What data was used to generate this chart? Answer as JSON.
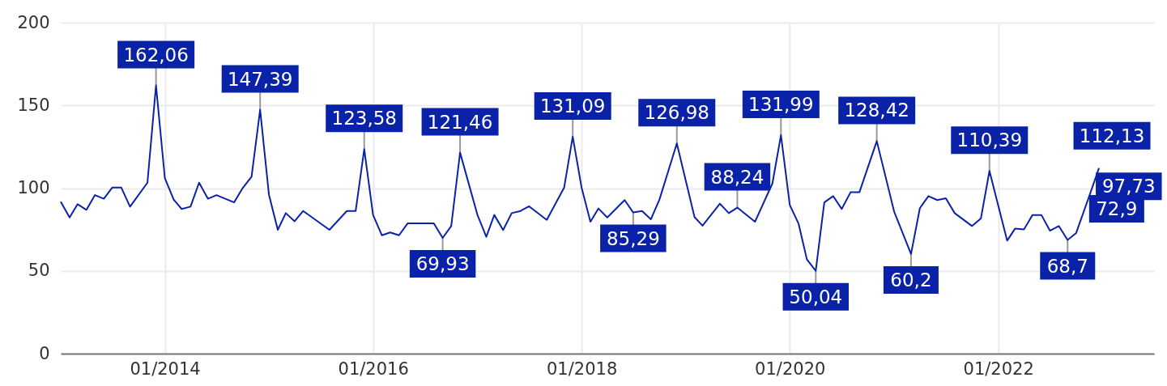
{
  "chart_data": {
    "type": "line",
    "x": [
      "2013-01",
      "2013-02",
      "2013-03",
      "2013-04",
      "2013-05",
      "2013-06",
      "2013-07",
      "2013-08",
      "2013-09",
      "2013-11",
      "2013-12",
      "2014-01",
      "2014-02",
      "2014-03",
      "2014-04",
      "2014-05",
      "2014-06",
      "2014-07",
      "2014-09",
      "2014-10",
      "2014-11",
      "2014-12",
      "2015-01",
      "2015-02",
      "2015-03",
      "2015-04",
      "2015-05",
      "2015-08",
      "2015-10",
      "2015-11",
      "2015-12",
      "2016-01",
      "2016-02",
      "2016-03",
      "2016-04",
      "2016-05",
      "2016-08",
      "2016-09",
      "2016-10",
      "2016-11",
      "2017-01",
      "2017-02",
      "2017-03",
      "2017-04",
      "2017-05",
      "2017-06",
      "2017-07",
      "2017-09",
      "2017-11",
      "2017-12",
      "2018-01",
      "2018-02",
      "2018-03",
      "2018-04",
      "2018-06",
      "2018-07",
      "2018-08",
      "2018-09",
      "2018-10",
      "2018-12",
      "2019-02",
      "2019-03",
      "2019-05",
      "2019-06",
      "2019-07",
      "2019-09",
      "2019-11",
      "2019-12",
      "2020-01",
      "2020-02",
      "2020-03",
      "2020-04",
      "2020-05",
      "2020-06",
      "2020-07",
      "2020-08",
      "2020-09",
      "2020-11",
      "2021-01",
      "2021-03",
      "2021-04",
      "2021-05",
      "2021-06",
      "2021-07",
      "2021-08",
      "2021-10",
      "2021-11",
      "2021-12",
      "2022-02",
      "2022-03",
      "2022-04",
      "2022-05",
      "2022-06",
      "2022-07",
      "2022-08",
      "2022-09",
      "2022-10",
      "2022-11-21",
      "2022-12-20"
    ],
    "series": [
      {
        "color": "#0a22a8",
        "values": [
          91.8,
          82.3,
          90.3,
          86.9,
          95.8,
          93.6,
          100.4,
          100.4,
          88.8,
          103.3,
          162.06,
          106.1,
          93.1,
          87.4,
          88.8,
          103.3,
          93.6,
          95.8,
          91.4,
          100.1,
          106.9,
          147.39,
          96,
          74.8,
          84.9,
          80,
          86.2,
          74.8,
          86.2,
          86.2,
          123.58,
          83.8,
          71.5,
          73.2,
          71.5,
          78.7,
          78.7,
          69.93,
          77.1,
          121.46,
          83.8,
          70.6,
          83.8,
          74.7,
          84.9,
          86.2,
          89,
          80.8,
          100.4,
          131.09,
          100.4,
          79.7,
          87.7,
          82.3,
          92.8,
          85.29,
          86.2,
          81.2,
          93.1,
          126.98,
          82.5,
          77.3,
          90.6,
          84.9,
          88.24,
          79.7,
          102.8,
          131.99,
          89.8,
          78.4,
          56.9,
          50.04,
          91.4,
          95.2,
          87.4,
          97.5,
          97.5,
          128.42,
          85.7,
          60.2,
          87.9,
          95.2,
          92.8,
          93.9,
          84.9,
          77.1,
          81.7,
          110.39,
          68.3,
          75.6,
          75.1,
          83.8,
          83.8,
          74.3,
          77.1,
          68.7,
          72.9,
          97.73,
          112.13
        ]
      }
    ],
    "xlim": [
      "2013-01",
      "2023-07"
    ],
    "xticks": [
      {
        "value": "2014-01",
        "label": "01/2014"
      },
      {
        "value": "2016-01",
        "label": "01/2016"
      },
      {
        "value": "2018-01",
        "label": "01/2018"
      },
      {
        "value": "2020-01",
        "label": "01/2020"
      },
      {
        "value": "2022-01",
        "label": "01/2022"
      }
    ],
    "ylim": [
      0,
      200
    ],
    "yticks": [
      0,
      50,
      100,
      150,
      200
    ],
    "grid": true,
    "annotations": [
      {
        "text": "162,06",
        "x": "2013-12",
        "y": 162.06
      },
      {
        "text": "147,39",
        "x": "2014-12",
        "y": 147.39
      },
      {
        "text": "123,58",
        "x": "2015-12",
        "y": 123.58
      },
      {
        "text": "69,93",
        "x": "2016-09",
        "y": 69.93
      },
      {
        "text": "121,46",
        "x": "2016-11",
        "y": 121.46
      },
      {
        "text": "131,09",
        "x": "2017-12",
        "y": 131.09
      },
      {
        "text": "85,29",
        "x": "2018-07",
        "y": 85.29
      },
      {
        "text": "126,98",
        "x": "2018-12",
        "y": 126.98
      },
      {
        "text": "88,24",
        "x": "2019-07",
        "y": 88.24
      },
      {
        "text": "131,99",
        "x": "2019-12",
        "y": 131.99
      },
      {
        "text": "50,04",
        "x": "2020-04",
        "y": 50.04
      },
      {
        "text": "128,42",
        "x": "2020-11",
        "y": 128.42
      },
      {
        "text": "60,2",
        "x": "2021-03",
        "y": 60.2
      },
      {
        "text": "110,39",
        "x": "2021-12",
        "y": 110.39
      },
      {
        "text": "68,7",
        "x": "2022-09",
        "y": 68.7
      },
      {
        "text": "72,9",
        "x": "2022-10",
        "y": 72.9
      },
      {
        "text": "97,73",
        "x": "2022-11-21",
        "y": 97.73
      },
      {
        "text": "112,13",
        "x": "2022-12-20",
        "y": 112.13
      }
    ]
  }
}
